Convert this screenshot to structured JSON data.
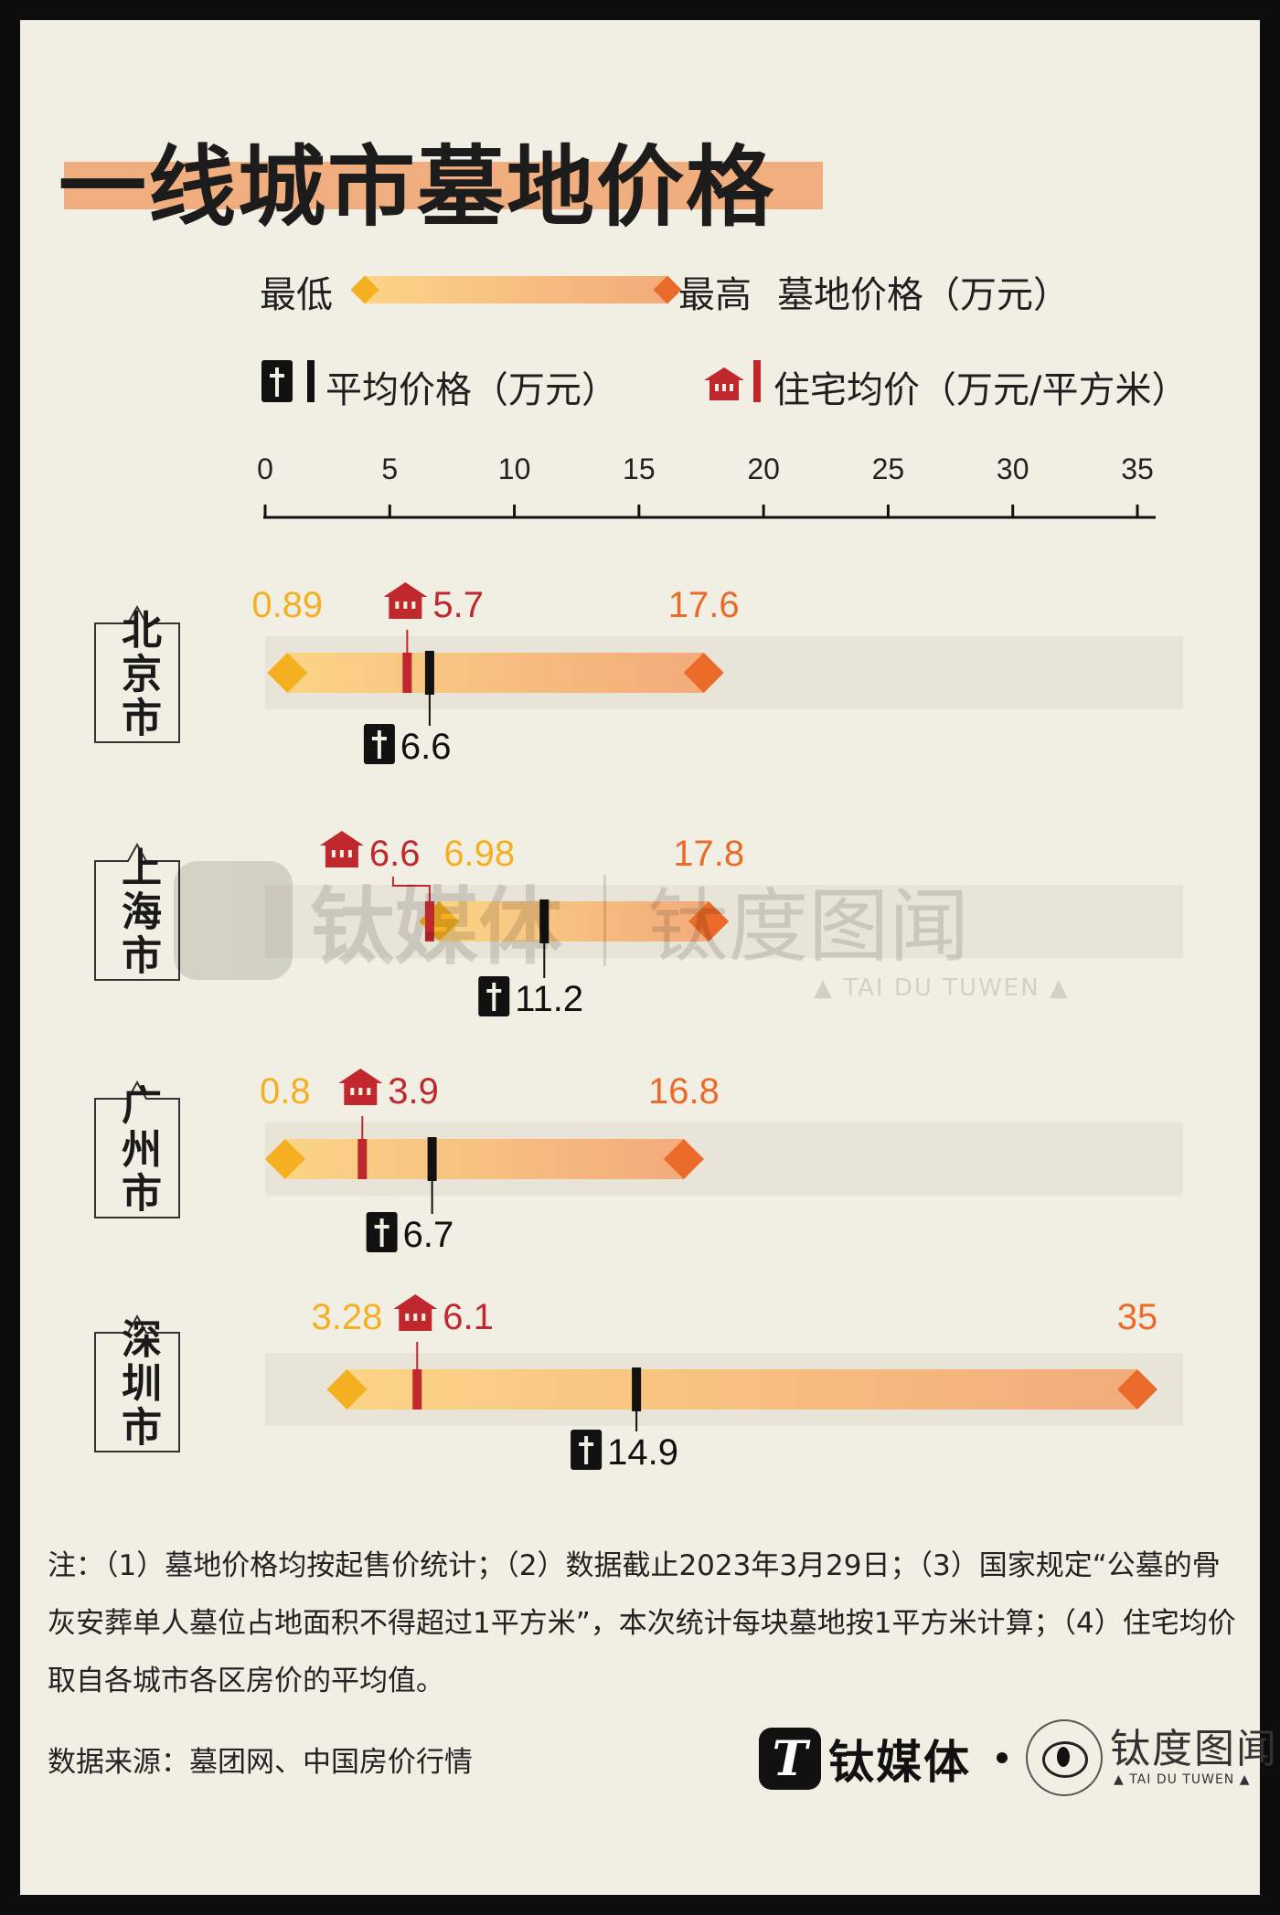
{
  "title": "一线城市墓地价格",
  "legend": {
    "min_label": "最低",
    "max_label": "最高",
    "range_label": "墓地价格（万元）",
    "avg_label": "平均价格（万元）",
    "house_label": "住宅均价（万元/平方米）",
    "icons": [
      "cross-icon",
      "house-icon",
      "diamond-icon"
    ]
  },
  "colors": {
    "min": "#f5b021",
    "max": "#ea6a2a",
    "avg": "#111111",
    "house": "#c0282d",
    "bar_start": "#fbd486",
    "bar_end": "#f3ab7a",
    "track": "#e8e4d8",
    "highlight": "#f0ad7e"
  },
  "chart_data": {
    "type": "range",
    "xlim": [
      0,
      35
    ],
    "ticks": [
      "0",
      "5",
      "10",
      "15",
      "20",
      "25",
      "30",
      "35"
    ],
    "tick_values": [
      0,
      5,
      10,
      15,
      20,
      25,
      30,
      35
    ],
    "cities": [
      {
        "name": "北京市",
        "min": 0.89,
        "max": 17.6,
        "avg": 6.6,
        "house": 5.7,
        "min_label": "0.89",
        "max_label": "17.6",
        "avg_label": "6.6",
        "house_label": "5.7"
      },
      {
        "name": "上海市",
        "min": 6.98,
        "max": 17.8,
        "avg": 11.2,
        "house": 6.6,
        "min_label": "6.98",
        "max_label": "17.8",
        "avg_label": "11.2",
        "house_label": "6.6"
      },
      {
        "name": "广州市",
        "min": 0.8,
        "max": 16.8,
        "avg": 6.7,
        "house": 3.9,
        "min_label": "0.8",
        "max_label": "16.8",
        "avg_label": "6.7",
        "house_label": "3.9"
      },
      {
        "name": "深圳市",
        "min": 3.28,
        "max": 35,
        "avg": 14.9,
        "house": 6.1,
        "min_label": "3.28",
        "max_label": "35",
        "avg_label": "14.9",
        "house_label": "6.1"
      }
    ]
  },
  "watermark": {
    "brand1": "钛媒体",
    "brand2": "钛度图闻",
    "brand2_sub": "▲ TAI DU TUWEN ▲"
  },
  "notes": "注：（1）墓地价格均按起售价统计；（2）数据截止2023年3月29日；（3）国家规定“公墓的骨灰安葬单人墓位占地面积不得超过1平方米”，本次统计每块墓地按1平方米计算；（4）住宅均价取自各城市各区房价的平均值。",
  "source": "数据来源：墓团网、中国房价行情",
  "brand": {
    "brand1_logo": "T",
    "brand1": "钛媒体",
    "brand2": "钛度图闻",
    "brand2_sub": "▲ TAI DU TUWEN ▲"
  }
}
